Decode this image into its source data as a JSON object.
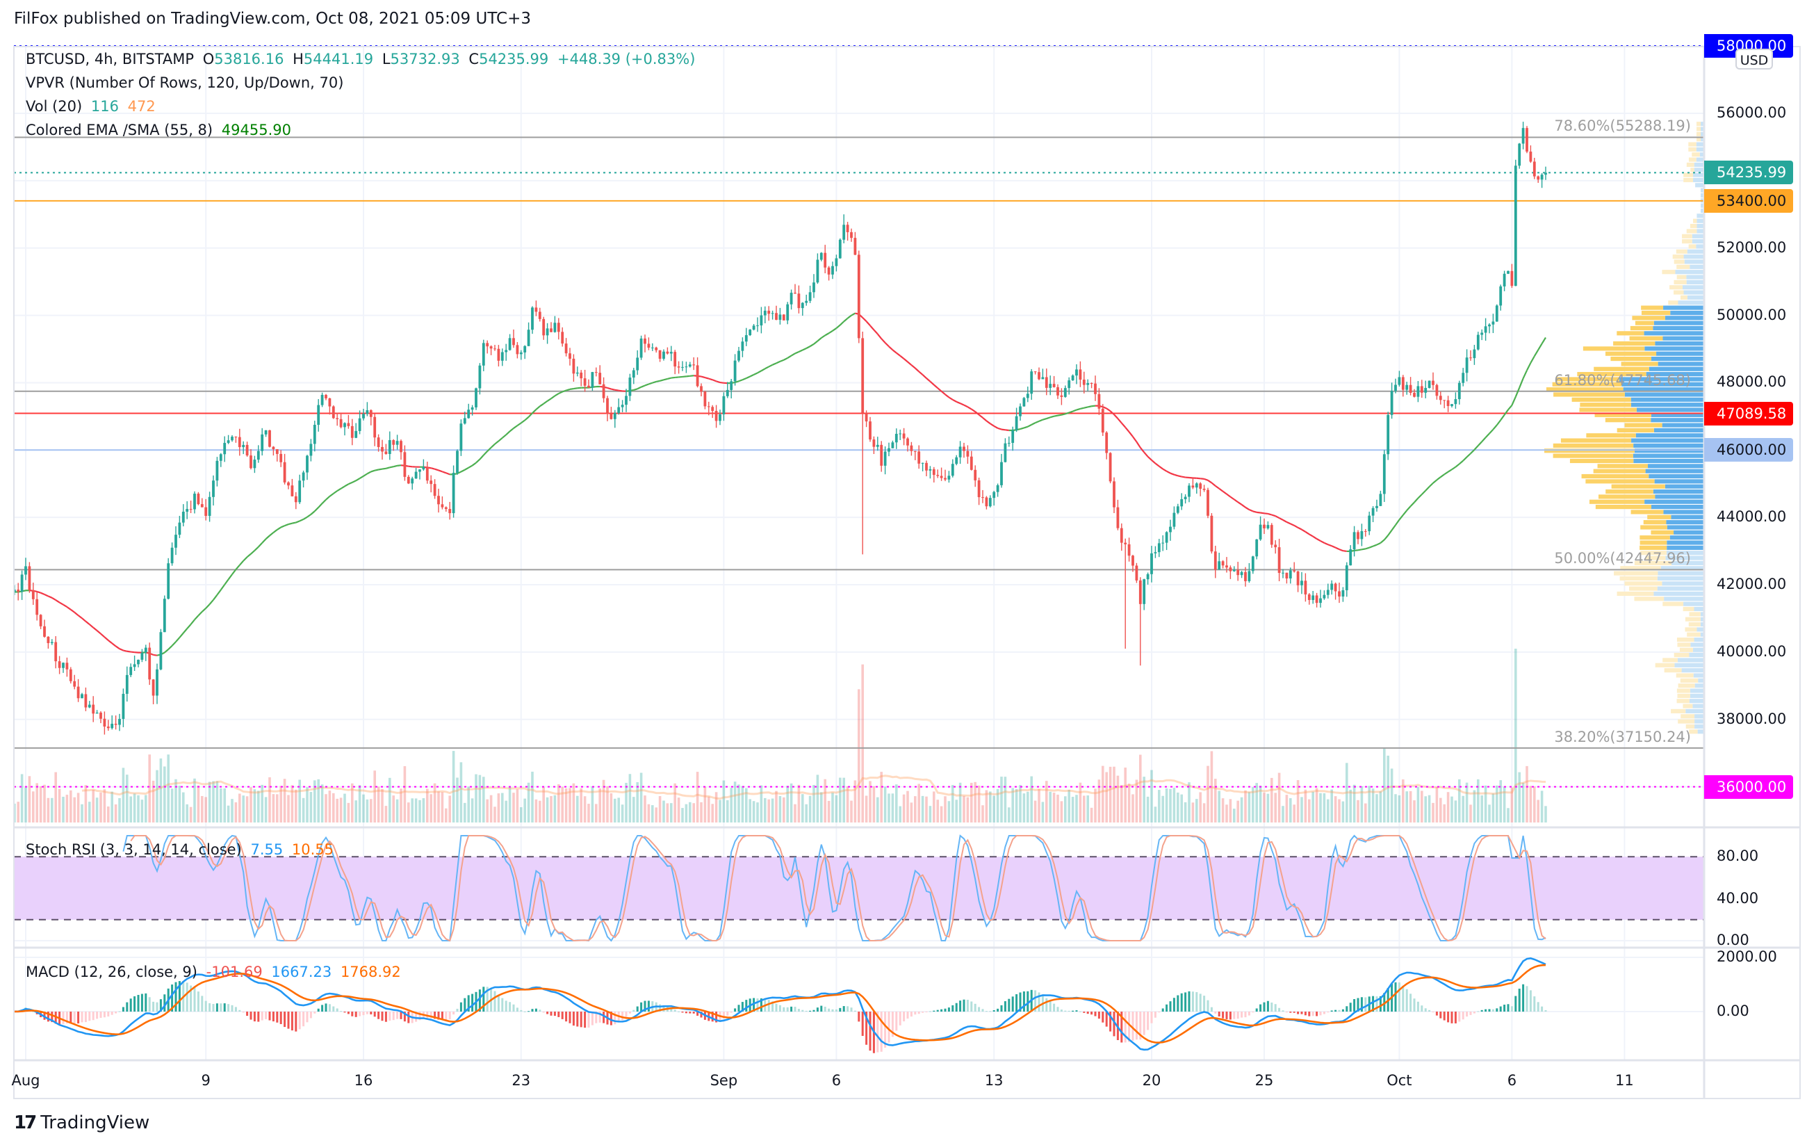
{
  "header": {
    "published": "FilFox published on TradingView.com, Oct 08, 2021 05:09 UTC+3"
  },
  "legend": {
    "symbol": "BTCUSD, 4h, BITSTAMP",
    "o_label": "O",
    "o": "53816.16",
    "h_label": "H",
    "h": "54441.19",
    "l_label": "L",
    "l": "53732.93",
    "c_label": "C",
    "c": "54235.99",
    "change": "+448.39 (+0.83%)",
    "vpvr": "VPVR (Number Of Rows, 120, Up/Down, 70)",
    "vol": "Vol (20)",
    "vol_v1": "116",
    "vol_v2": "472",
    "ema": "Colored EMA /SMA (55, 8)",
    "ema_v": "49455.90"
  },
  "stoch": {
    "label": "Stoch RSI (3, 3, 14, 14, close)",
    "k": "7.55",
    "d": "10.55",
    "axis": [
      {
        "label": "80.00",
        "value": 80
      },
      {
        "label": "40.00",
        "value": 40
      },
      {
        "label": "0.00",
        "value": 0
      }
    ]
  },
  "macd": {
    "label": "MACD (12, 26, close, 9)",
    "hist": "-101.69",
    "macd": "1667.23",
    "signal": "1768.92",
    "axis": [
      {
        "label": "2000.00",
        "value": 2000
      },
      {
        "label": "0.00",
        "value": 0
      }
    ]
  },
  "price_axis": {
    "currency": "USD",
    "ticks": [
      {
        "label": "56000.00",
        "value": 56000
      },
      {
        "label": "52000.00",
        "value": 52000
      },
      {
        "label": "50000.00",
        "value": 50000
      },
      {
        "label": "48000.00",
        "value": 48000
      },
      {
        "label": "44000.00",
        "value": 44000
      },
      {
        "label": "42000.00",
        "value": 42000
      },
      {
        "label": "40000.00",
        "value": 40000
      },
      {
        "label": "38000.00",
        "value": 38000
      }
    ],
    "badges": [
      {
        "label": "58000.00",
        "value": 58000,
        "bg": "#0000ff",
        "fg": "#ffffff"
      },
      {
        "label": "54235.99",
        "value": 54235.99,
        "bg": "#26a69a",
        "fg": "#ffffff"
      },
      {
        "label": "53400.00",
        "value": 53400,
        "bg": "#ffa726",
        "fg": "#131722"
      },
      {
        "label": "47089.58",
        "value": 47089.58,
        "bg": "#ff0000",
        "fg": "#ffffff"
      },
      {
        "label": "46000.00",
        "value": 46000,
        "bg": "#a6c3f2",
        "fg": "#131722"
      },
      {
        "label": "36000.00",
        "value": 36000,
        "bg": "#ff00ff",
        "fg": "#ffffff"
      }
    ]
  },
  "price_lines": [
    {
      "value": 58000,
      "color": "#0000ff",
      "style": "dotted"
    },
    {
      "value": 55288.19,
      "color": "#9e9e9e",
      "style": "solid",
      "label": "78.60%(55288.19)"
    },
    {
      "value": 54235.99,
      "color": "#26a69a",
      "style": "dotted"
    },
    {
      "value": 53400,
      "color": "#ffa726",
      "style": "solid"
    },
    {
      "value": 47745.68,
      "color": "#9e9e9e",
      "style": "solid",
      "label": "61.80%(47745.68)"
    },
    {
      "value": 47089.58,
      "color": "#ff3b3b",
      "style": "solid"
    },
    {
      "value": 46000,
      "color": "#a6c3f2",
      "style": "solid"
    },
    {
      "value": 42447.96,
      "color": "#9e9e9e",
      "style": "solid",
      "label": "50.00%(42447.96)"
    },
    {
      "value": 37150.24,
      "color": "#9e9e9e",
      "style": "solid",
      "label": "38.20%(37150.24)"
    },
    {
      "value": 36000,
      "color": "#ff00ff",
      "style": "dotted"
    }
  ],
  "time_axis": [
    {
      "label": "Aug",
      "day": 0
    },
    {
      "label": "9",
      "day": 8
    },
    {
      "label": "16",
      "day": 15
    },
    {
      "label": "23",
      "day": 22
    },
    {
      "label": "Sep",
      "day": 31
    },
    {
      "label": "6",
      "day": 36
    },
    {
      "label": "13",
      "day": 43
    },
    {
      "label": "20",
      "day": 50
    },
    {
      "label": "25",
      "day": 55
    },
    {
      "label": "Oct",
      "day": 61
    },
    {
      "label": "6",
      "day": 66
    },
    {
      "label": "11",
      "day": 71
    }
  ],
  "footer": {
    "logo_mark": "17",
    "logo_text": "TradingView"
  },
  "colors": {
    "up": "#26a69a",
    "down": "#ef5350",
    "ema_up": "#4caf50",
    "ema_down": "#f23645",
    "stoch_k": "#2196f3",
    "stoch_d": "#ff6d00",
    "stoch_band": "#e9d1fc"
  },
  "chart_data": {
    "type": "candlestick",
    "symbol": "BTCUSD",
    "interval": "4h",
    "x_unit": "days since Aug 1 2021",
    "price_path_keyframes": [
      [
        -0.6,
        41600
      ],
      [
        0,
        42400
      ],
      [
        0.5,
        41000
      ],
      [
        1.5,
        39700
      ],
      [
        2.5,
        38600
      ],
      [
        3.3,
        38000
      ],
      [
        4,
        37700
      ],
      [
        4.6,
        39500
      ],
      [
        5.3,
        40200
      ],
      [
        5.6,
        38500
      ],
      [
        6,
        40500
      ],
      [
        6.4,
        43000
      ],
      [
        7,
        44000
      ],
      [
        7.6,
        44700
      ],
      [
        8,
        44000
      ],
      [
        8.5,
        45800
      ],
      [
        9.3,
        46400
      ],
      [
        10,
        45600
      ],
      [
        10.6,
        46600
      ],
      [
        11.5,
        45200
      ],
      [
        12,
        44600
      ],
      [
        12.6,
        46000
      ],
      [
        13.2,
        47800
      ],
      [
        13.7,
        46800
      ],
      [
        14.5,
        46500
      ],
      [
        15.2,
        47300
      ],
      [
        15.7,
        45800
      ],
      [
        16.4,
        46400
      ],
      [
        17,
        45000
      ],
      [
        17.6,
        45600
      ],
      [
        18.3,
        44300
      ],
      [
        18.8,
        44100
      ],
      [
        19.3,
        46800
      ],
      [
        19.8,
        47300
      ],
      [
        20.4,
        49200
      ],
      [
        21,
        48800
      ],
      [
        21.5,
        49200
      ],
      [
        22,
        48800
      ],
      [
        22.6,
        50300
      ],
      [
        23,
        49400
      ],
      [
        23.5,
        49700
      ],
      [
        24.2,
        48500
      ],
      [
        24.8,
        47800
      ],
      [
        25.3,
        48400
      ],
      [
        26,
        46800
      ],
      [
        26.6,
        47400
      ],
      [
        27.3,
        49200
      ],
      [
        28,
        48800
      ],
      [
        28.5,
        49000
      ],
      [
        29,
        48300
      ],
      [
        29.6,
        48600
      ],
      [
        30.2,
        47200
      ],
      [
        30.8,
        47000
      ],
      [
        31.5,
        48600
      ],
      [
        32.2,
        49600
      ],
      [
        33,
        50200
      ],
      [
        33.6,
        49800
      ],
      [
        34,
        50600
      ],
      [
        34.6,
        50200
      ],
      [
        35.3,
        51800
      ],
      [
        35.8,
        51200
      ],
      [
        36.3,
        52700
      ],
      [
        36.6,
        52300
      ],
      [
        36.9,
        51600
      ],
      [
        37.1,
        47000
      ],
      [
        37.5,
        46500
      ],
      [
        38,
        45700
      ],
      [
        38.7,
        46500
      ],
      [
        39.3,
        46200
      ],
      [
        40,
        45300
      ],
      [
        40.6,
        45100
      ],
      [
        41.2,
        45500
      ],
      [
        41.7,
        46200
      ],
      [
        42.3,
        44600
      ],
      [
        42.9,
        44400
      ],
      [
        43.6,
        46300
      ],
      [
        44.2,
        47200
      ],
      [
        44.7,
        48300
      ],
      [
        45.3,
        48000
      ],
      [
        45.9,
        47600
      ],
      [
        46.5,
        48300
      ],
      [
        47,
        48100
      ],
      [
        47.6,
        47700
      ],
      [
        48.2,
        44900
      ],
      [
        48.6,
        43300
      ],
      [
        49.2,
        42700
      ],
      [
        49.5,
        41600
      ],
      [
        50,
        42800
      ],
      [
        50.6,
        43500
      ],
      [
        51.2,
        44300
      ],
      [
        51.8,
        44900
      ],
      [
        52.4,
        44900
      ],
      [
        52.7,
        42600
      ],
      [
        53.2,
        42700
      ],
      [
        53.8,
        42300
      ],
      [
        54.2,
        42200
      ],
      [
        54.8,
        43800
      ],
      [
        55.2,
        43700
      ],
      [
        55.8,
        42200
      ],
      [
        56.3,
        42400
      ],
      [
        56.9,
        41700
      ],
      [
        57.4,
        41400
      ],
      [
        58,
        42000
      ],
      [
        58.4,
        41600
      ],
      [
        59,
        43400
      ],
      [
        59.6,
        43800
      ],
      [
        60.2,
        44800
      ],
      [
        60.6,
        47700
      ],
      [
        61,
        48000
      ],
      [
        61.6,
        47600
      ],
      [
        62.3,
        48100
      ],
      [
        62.9,
        47400
      ],
      [
        63.5,
        47600
      ],
      [
        64,
        48600
      ],
      [
        64.6,
        49600
      ],
      [
        65.2,
        49800
      ],
      [
        65.7,
        51300
      ],
      [
        66,
        51000
      ],
      [
        66.2,
        55200
      ],
      [
        66.5,
        55400
      ],
      [
        66.8,
        54600
      ],
      [
        67.2,
        54000
      ],
      [
        67.6,
        54236
      ]
    ],
    "wick_extremes": [
      [
        37.1,
        42900
      ],
      [
        49.5,
        39600
      ],
      [
        48.8,
        40100
      ],
      [
        66.5,
        55750
      ],
      [
        36.3,
        53000
      ]
    ],
    "ylim": [
      35000,
      58600
    ]
  }
}
